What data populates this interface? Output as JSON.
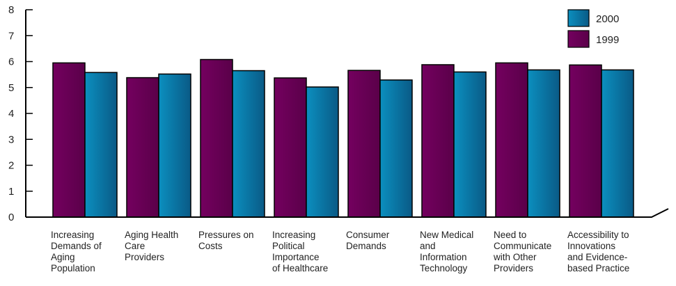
{
  "chart_data": {
    "type": "bar",
    "categories": [
      [
        "Increasing",
        "Demands of",
        "Aging",
        "Population"
      ],
      [
        "Aging Health",
        "Care",
        "Providers"
      ],
      [
        "Pressures on",
        "Costs"
      ],
      [
        "Increasing",
        "Political",
        "Importance",
        "of Healthcare"
      ],
      [
        "Consumer",
        "Demands"
      ],
      [
        "New Medical",
        "and",
        "Information",
        "Technology"
      ],
      [
        "Need to",
        "Communicate",
        "with Other",
        "Providers"
      ],
      [
        "Accessibility to",
        "Innovations",
        "and Evidence-",
        "based Practice"
      ]
    ],
    "series": [
      {
        "name": "1999",
        "color": "#6b0058",
        "values": [
          5.95,
          5.38,
          6.08,
          5.37,
          5.66,
          5.88,
          5.95,
          5.87
        ]
      },
      {
        "name": "2000",
        "color": "#0a6e9a",
        "values": [
          5.58,
          5.52,
          5.65,
          5.02,
          5.29,
          5.6,
          5.68,
          5.68
        ]
      }
    ],
    "legend_order": [
      "2000",
      "1999"
    ],
    "y_ticks": [
      "0",
      "1",
      "2",
      "3",
      "4",
      "5",
      "6",
      "7",
      "8"
    ],
    "ylim": [
      0,
      8
    ],
    "grid": false,
    "legend_position": "top-right"
  }
}
